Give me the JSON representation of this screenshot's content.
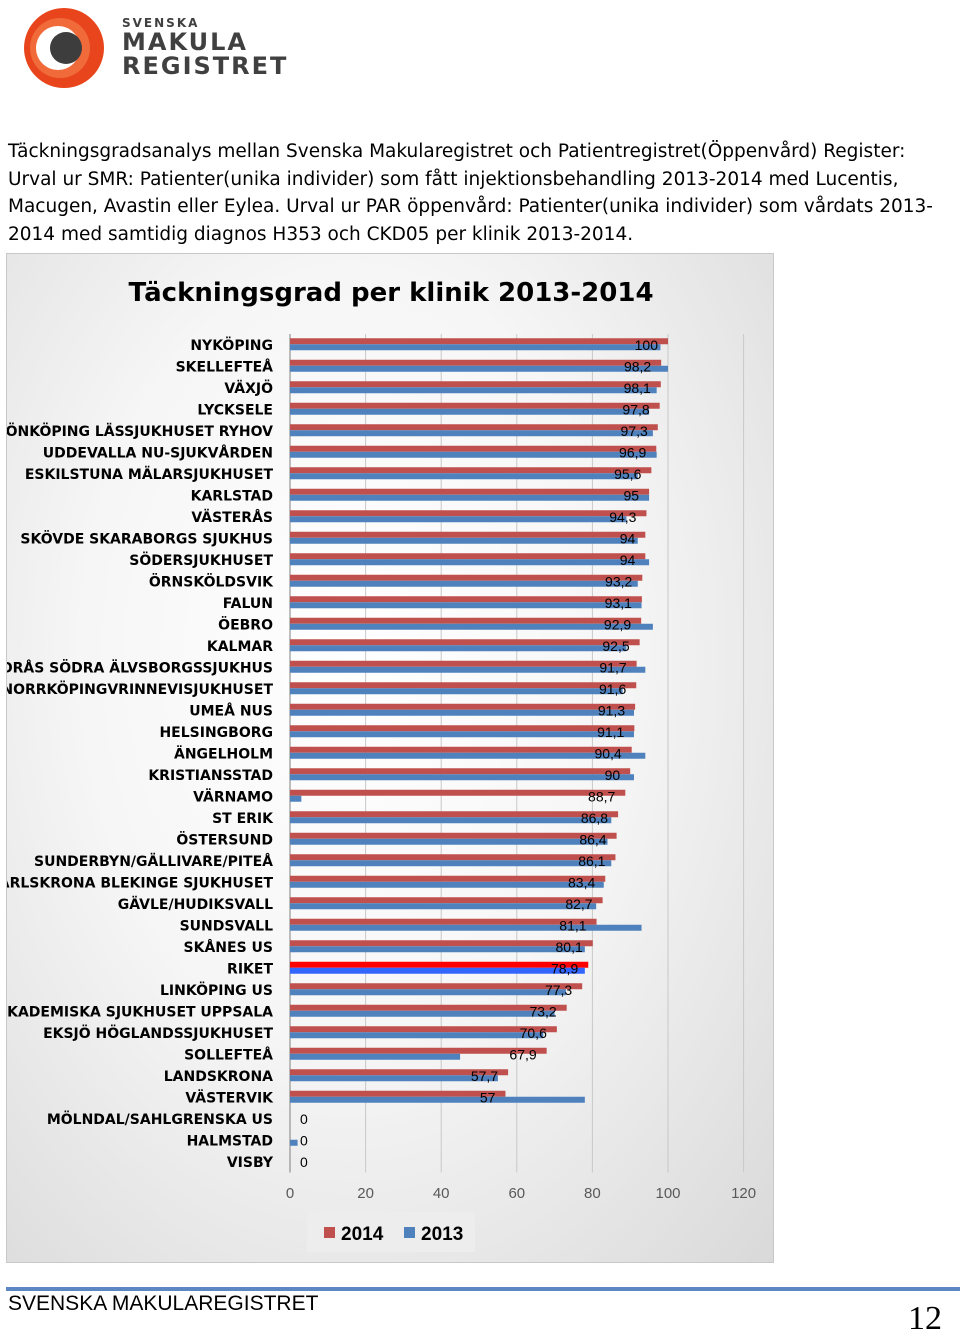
{
  "header": {
    "logo_line1": "SVENSKA",
    "logo_line2": "MAKULA",
    "logo_line3": "REGISTRET",
    "colors": {
      "logo_red": "#e8451d",
      "logo_dark": "#3d3d3d"
    }
  },
  "intro": [
    "Täckningsgradsanalys mellan Svenska Makularegistret och Patientregistret(Öppenvård) Register:",
    "Urval ur SMR: Patienter(unika individer) som fått injektionsbehandling 2013-2014 med Lucentis,",
    "Macugen, Avastin eller Eylea. Urval ur PAR öppenvård: Patienter(unika individer) som vårdats 2013-",
    "2014 med samtidig diagnos H353 och CKD05 per klinik 2013-2014."
  ],
  "chart_data": {
    "type": "bar",
    "orientation": "horizontal",
    "title": "Täckningsgrad per klinik 2013-2014",
    "categories": [
      "NYKÖPING",
      "SKELLEFTEÅ",
      "VÄXJÖ",
      "LYCKSELE",
      "JÖNKÖPING LÄSSJUKHUSET RYHOV",
      "UDDEVALLA NU-SJUKVÅRDEN",
      "ESKILSTUNA MÄLARSJUKHUSET",
      "KARLSTAD",
      "VÄSTERÅS",
      "SKÖVDE SKARABORGS SJUKHUS",
      "SÖDERSJUKHUSET",
      "ÖRNSKÖLDSVIK",
      "FALUN",
      "ÖEBRO",
      "KALMAR",
      "BORÅS SÖDRA ÄLVSBORGSSJUKHUS",
      "NORRKÖPINGVRINNEVISJUKHUSET",
      "UMEÅ NUS",
      "HELSINGBORG",
      "ÄNGELHOLM",
      "KRISTIANSSTAD",
      "VÄRNAMO",
      "ST ERIK",
      "ÖSTERSUND",
      "SUNDERBYN/GÄLLIVARE/PITEÅ",
      "KARLSKRONA BLEKINGE SJUKHUSET",
      "GÄVLE/HUDIKSVALL",
      "SUNDSVALL",
      "SKÅNES US",
      "RIKET",
      "LINKÖPING US",
      "AKADEMISKA SJUKHUSET UPPSALA",
      "EKSJÖ HÖGLANDSSJUKHUSET",
      "SOLLEFTEÅ",
      "LANDSKRONA",
      "VÄSTERVIK",
      "MÖLNDAL/SAHLGRENSKA US",
      "HALMSTAD",
      "VISBY"
    ],
    "series": [
      {
        "name": "2014",
        "color": "#c0504d",
        "values": [
          100,
          98.2,
          98.1,
          97.8,
          97.3,
          96.9,
          95.6,
          95,
          94.3,
          94,
          94,
          93.2,
          93.1,
          92.9,
          92.5,
          91.7,
          91.6,
          91.3,
          91.1,
          90.4,
          90,
          88.7,
          86.8,
          86.4,
          86.1,
          83.4,
          82.7,
          81.1,
          80.1,
          78.9,
          77.3,
          73.2,
          70.6,
          67.9,
          57.7,
          57,
          0,
          0,
          0
        ],
        "labels": [
          "100",
          "98,2",
          "98,1",
          "97,8",
          "97,3",
          "96,9",
          "95,6",
          "95",
          "94,3",
          "94",
          "94",
          "93,2",
          "93,1",
          "92,9",
          "92,5",
          "91,7",
          "91,6",
          "91,3",
          "91,1",
          "90,4",
          "90",
          "88,7",
          "86,8",
          "86,4",
          "86,1",
          "83,4",
          "82,7",
          "81,1",
          "80,1",
          "78,9",
          "77,3",
          "73,2",
          "70,6",
          "67,9",
          "57,7",
          "57",
          "0",
          "0",
          "0"
        ]
      },
      {
        "name": "2013",
        "color": "#4f81bd",
        "values": [
          98,
          100,
          97,
          95,
          96,
          97,
          92,
          95,
          89,
          92,
          95,
          92,
          93,
          96,
          89,
          94,
          88,
          91,
          91,
          94,
          91,
          3,
          85,
          84,
          85,
          83,
          81,
          93,
          78,
          78,
          73,
          70,
          67,
          45,
          55,
          78,
          0,
          2,
          0
        ]
      }
    ],
    "highlight_category": "RIKET",
    "highlight_colors": {
      "2014": "#ff0000",
      "2013": "#3366ff"
    },
    "xlim": [
      0,
      120
    ],
    "xticks": [
      0,
      20,
      40,
      60,
      80,
      100,
      120
    ],
    "legend_position": "bottom"
  },
  "footer": {
    "org_name": "SVENSKA MAKULAREGISTRET",
    "page_number": "12",
    "line_color": "#5b87c2"
  }
}
